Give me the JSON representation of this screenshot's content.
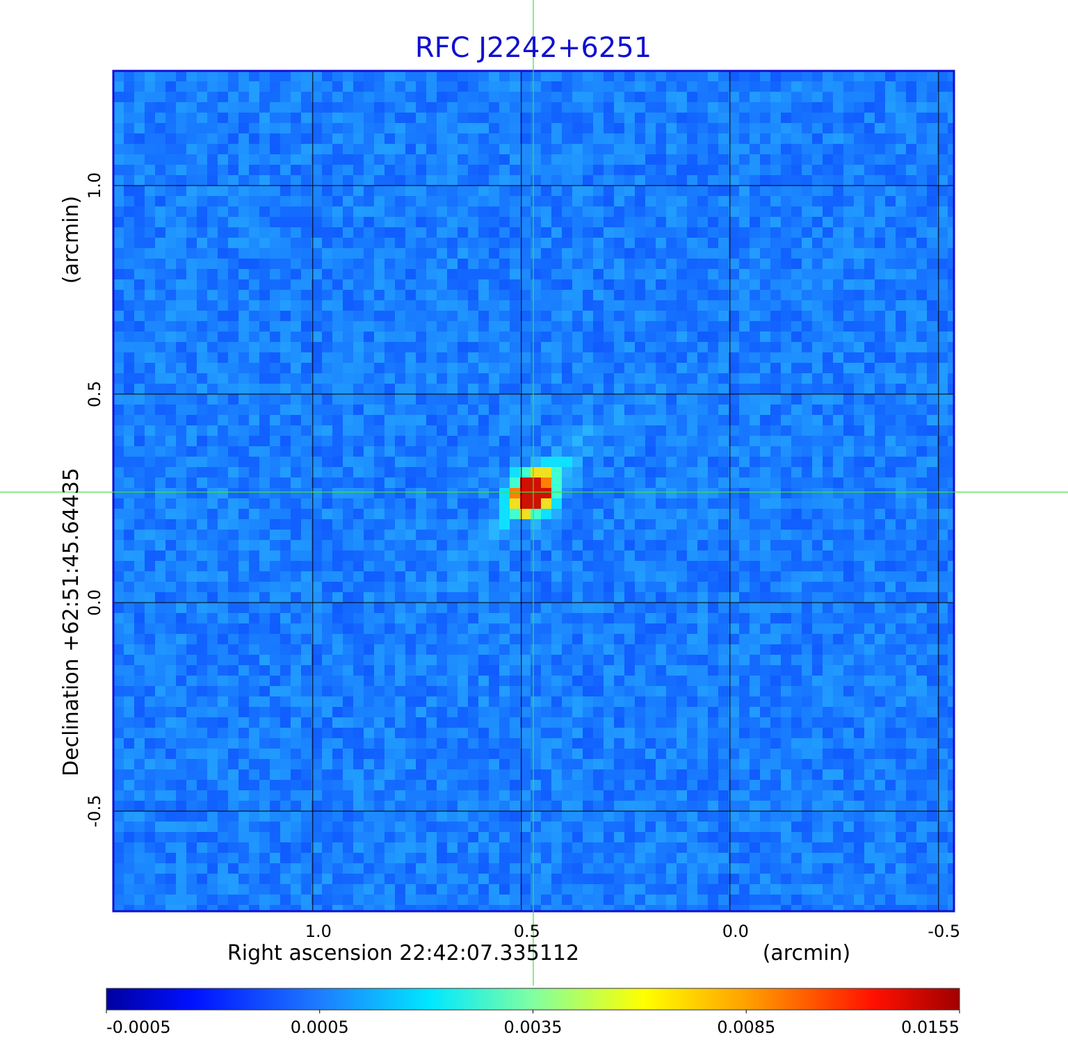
{
  "chart_data": {
    "type": "image",
    "title": "RFC J2242+6251",
    "x_label": "Right ascension  22:42:07.335112",
    "x_unit": "(arcmin)",
    "y_label": "Declination  +62:51:45.64435",
    "y_unit": "(arcmin)",
    "xlim": [
      1.478,
      -0.537
    ],
    "ylim": [
      -0.74,
      1.275
    ],
    "xticks": [
      {
        "value": 1.0,
        "label": "1.0"
      },
      0.5,
      {
        "value": 0.0,
        "label": "0.0"
      },
      -0.5
    ],
    "yticks": [
      {
        "value": 1.0,
        "label": "1.0"
      },
      0.5,
      {
        "value": 0.0,
        "label": "0.0"
      },
      -0.5
    ],
    "grid": true,
    "frame_color": "#1010d0",
    "colorbar_ticks": [
      -0.0005,
      0.0005,
      0.0035,
      0.0085,
      0.0155
    ]
  }
}
